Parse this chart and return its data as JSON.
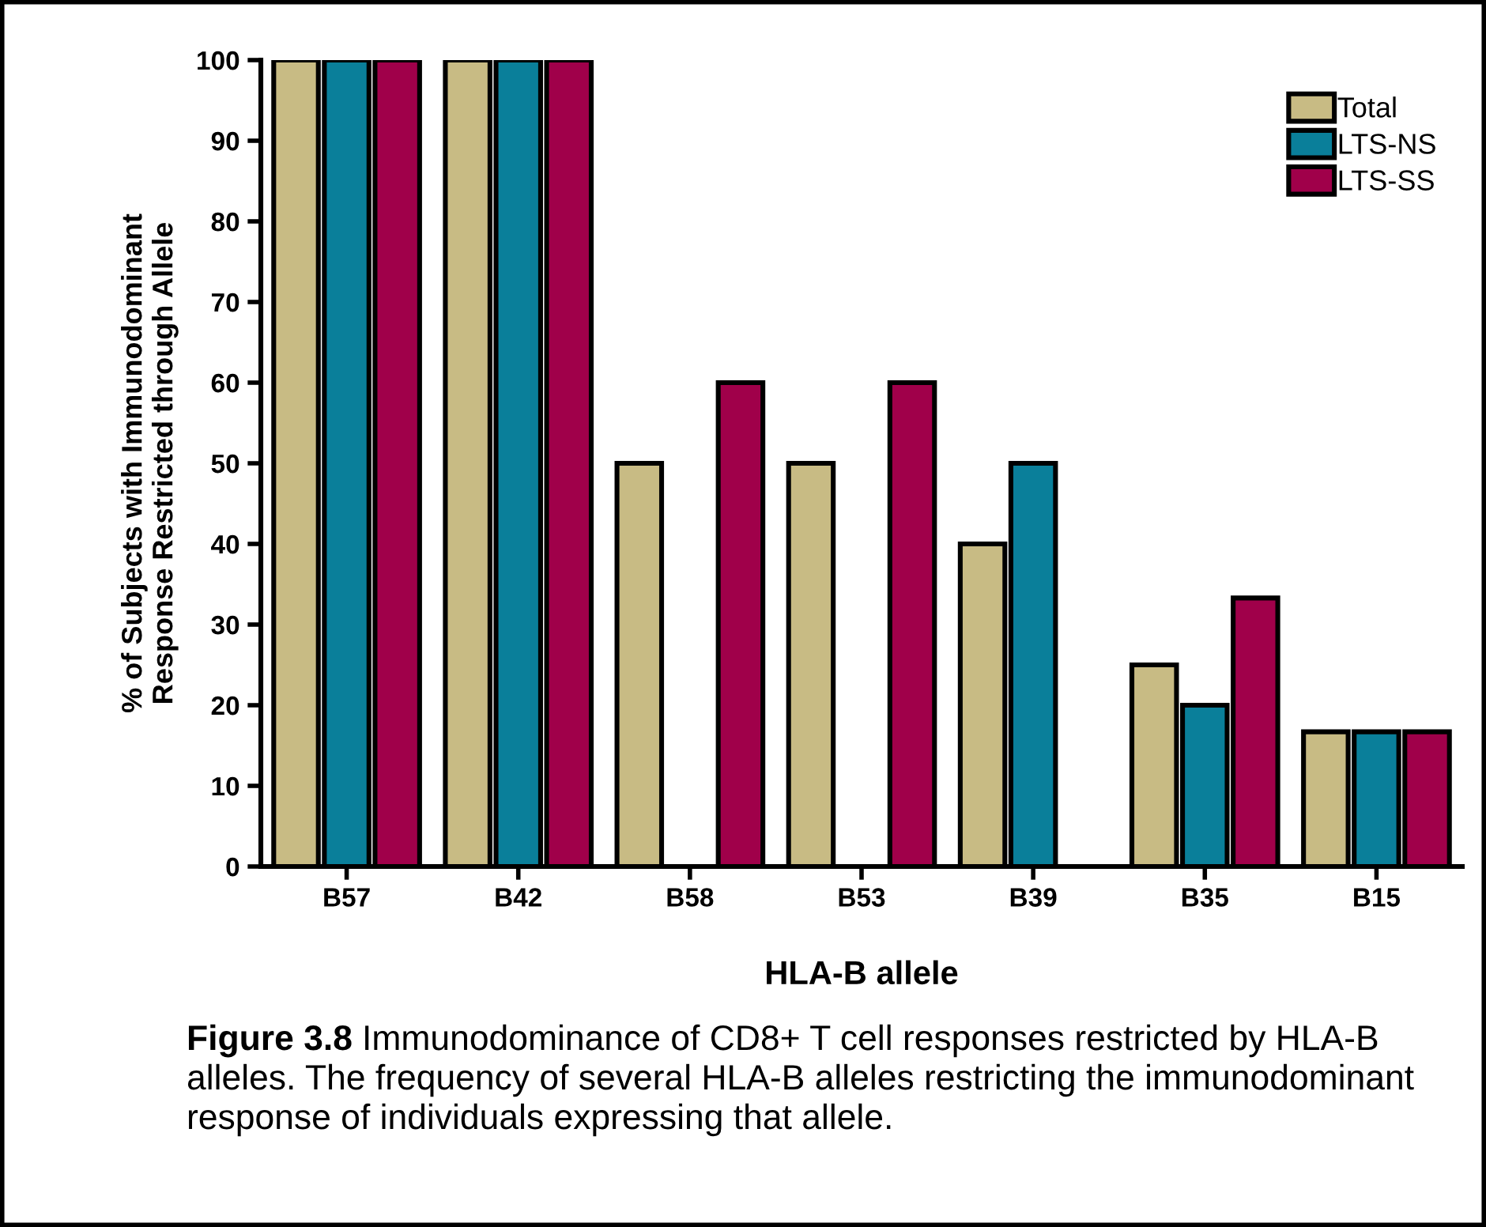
{
  "chart_data": {
    "type": "bar",
    "xlabel": "HLA-B allele",
    "ylabel": "% of Subjects with Immunodominant\nResponse Restricted through Allele",
    "categories": [
      "B57",
      "B42",
      "B58",
      "B53",
      "B39",
      "B35",
      "B15"
    ],
    "series": [
      {
        "name": "Total",
        "color": "#c8bb84",
        "values": [
          100,
          100,
          50,
          50,
          40,
          25,
          16.7
        ]
      },
      {
        "name": "LTS-NS",
        "color": "#0a7f9a",
        "values": [
          100,
          100,
          null,
          null,
          50,
          20,
          16.7
        ]
      },
      {
        "name": "LTS-SS",
        "color": "#a0004a",
        "values": [
          100,
          100,
          60,
          60,
          null,
          33.3,
          16.7
        ]
      }
    ],
    "ylim": [
      0,
      100
    ],
    "yticks": [
      0,
      10,
      20,
      30,
      40,
      50,
      60,
      70,
      80,
      90,
      100
    ],
    "grid": false,
    "legend": "top right",
    "annotations": [
      "Figure 3.8",
      "Immunodominance of CD8+ T cell responses restricted by HLA-B alleles. The frequency of several HLA-B alleles restricting the immunodominant response of individuals expressing that allele."
    ]
  }
}
